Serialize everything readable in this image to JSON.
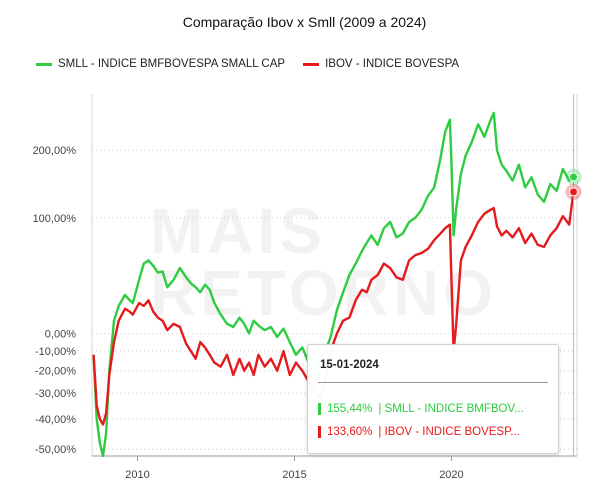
{
  "chart_data": {
    "type": "line",
    "title": "Comparação Ibov x Smll (2009 a 2024)",
    "xlabel": "",
    "ylabel": "",
    "x_ticks": [
      "2010",
      "2015",
      "2020"
    ],
    "y_ticks": [
      "200,00%",
      "100,00%",
      "0,00%",
      "-10,00%",
      "-20,00%",
      "-30,00%",
      "-40,00%",
      "-50,00%"
    ],
    "y_scale": "log(1 + return)",
    "xlim": [
      2008.7,
      2024.15
    ],
    "ylim": [
      -52,
      320
    ],
    "grid": "horizontal dotted",
    "legend_position": "top-left",
    "series": [
      {
        "name": "SMLL - INDICE BMFBOVESPA SMALL CAP",
        "color": "#2ecc40",
        "x": [
          2008.75,
          2008.85,
          2008.95,
          2009.05,
          2009.15,
          2009.25,
          2009.4,
          2009.55,
          2009.75,
          2009.9,
          2010.0,
          2010.2,
          2010.35,
          2010.5,
          2010.65,
          2010.8,
          2010.95,
          2011.1,
          2011.3,
          2011.5,
          2011.7,
          2011.85,
          2012.0,
          2012.15,
          2012.3,
          2012.45,
          2012.6,
          2012.8,
          2013.0,
          2013.2,
          2013.4,
          2013.55,
          2013.7,
          2013.85,
          2014.0,
          2014.2,
          2014.4,
          2014.6,
          2014.8,
          2015.0,
          2015.2,
          2015.4,
          2015.6,
          2015.8,
          2015.95,
          2016.1,
          2016.3,
          2016.5,
          2016.7,
          2016.9,
          2017.1,
          2017.3,
          2017.45,
          2017.6,
          2017.8,
          2018.0,
          2018.2,
          2018.4,
          2018.6,
          2018.8,
          2019.0,
          2019.2,
          2019.4,
          2019.6,
          2019.8,
          2019.95,
          2020.1,
          2020.15,
          2020.22,
          2020.3,
          2020.45,
          2020.6,
          2020.8,
          2021.0,
          2021.2,
          2021.4,
          2021.5,
          2021.6,
          2021.75,
          2021.9,
          2022.1,
          2022.3,
          2022.5,
          2022.7,
          2022.9,
          2023.1,
          2023.3,
          2023.5,
          2023.7,
          2023.9,
          2024.04
        ],
        "y": [
          -12,
          -40,
          -48,
          -52,
          -45,
          -20,
          8,
          18,
          26,
          22,
          20,
          38,
          52,
          55,
          50,
          44,
          45,
          32,
          38,
          48,
          40,
          35,
          32,
          28,
          34,
          30,
          20,
          12,
          6,
          4,
          10,
          6,
          0,
          8,
          5,
          2,
          4,
          -2,
          3,
          -5,
          -12,
          -8,
          -16,
          -22,
          -15,
          -12,
          -2,
          15,
          28,
          42,
          52,
          64,
          72,
          80,
          70,
          88,
          95,
          78,
          82,
          95,
          100,
          110,
          128,
          140,
          185,
          235,
          260,
          180,
          80,
          110,
          160,
          190,
          215,
          250,
          225,
          260,
          275,
          200,
          175,
          165,
          150,
          175,
          140,
          155,
          130,
          120,
          145,
          135,
          168,
          150,
          155.44
        ]
      },
      {
        "name": "IBOV - INDICE BOVESPA",
        "color": "#e41a1c",
        "x": [
          2008.75,
          2008.85,
          2008.95,
          2009.05,
          2009.15,
          2009.25,
          2009.4,
          2009.55,
          2009.75,
          2009.9,
          2010.0,
          2010.2,
          2010.35,
          2010.5,
          2010.65,
          2010.8,
          2010.95,
          2011.1,
          2011.3,
          2011.5,
          2011.7,
          2011.85,
          2012.0,
          2012.15,
          2012.3,
          2012.45,
          2012.6,
          2012.8,
          2013.0,
          2013.2,
          2013.4,
          2013.55,
          2013.7,
          2013.85,
          2014.0,
          2014.2,
          2014.4,
          2014.6,
          2014.8,
          2015.0,
          2015.2,
          2015.4,
          2015.6,
          2015.8,
          2015.95,
          2016.1,
          2016.3,
          2016.5,
          2016.7,
          2016.9,
          2017.1,
          2017.3,
          2017.45,
          2017.6,
          2017.8,
          2018.0,
          2018.2,
          2018.4,
          2018.6,
          2018.8,
          2019.0,
          2019.2,
          2019.4,
          2019.6,
          2019.8,
          2019.95,
          2020.1,
          2020.15,
          2020.22,
          2020.3,
          2020.45,
          2020.6,
          2020.8,
          2021.0,
          2021.2,
          2021.4,
          2021.5,
          2021.6,
          2021.75,
          2021.9,
          2022.1,
          2022.3,
          2022.5,
          2022.7,
          2022.9,
          2023.1,
          2023.3,
          2023.5,
          2023.7,
          2023.9,
          2024.04
        ],
        "y": [
          -12,
          -35,
          -40,
          -42,
          -38,
          -22,
          -5,
          8,
          16,
          14,
          12,
          20,
          18,
          22,
          14,
          10,
          8,
          2,
          6,
          4,
          -6,
          -10,
          -14,
          -5,
          -8,
          -12,
          -16,
          -18,
          -12,
          -22,
          -14,
          -20,
          -16,
          -22,
          -12,
          -18,
          -14,
          -20,
          -10,
          -22,
          -16,
          -20,
          -25,
          -30,
          -32,
          -26,
          -10,
          0,
          8,
          10,
          22,
          30,
          28,
          38,
          42,
          52,
          48,
          40,
          38,
          55,
          60,
          62,
          66,
          75,
          82,
          88,
          92,
          40,
          -10,
          5,
          55,
          68,
          80,
          95,
          105,
          110,
          112,
          90,
          80,
          85,
          78,
          88,
          72,
          82,
          70,
          68,
          80,
          88,
          102,
          92,
          133.6
        ]
      }
    ]
  },
  "tooltip": {
    "date": "15-01-2024",
    "rows": [
      {
        "value": "155,44%",
        "label": "| SMLL - INDICE BMFBOV..."
      },
      {
        "value": "133,60%",
        "label": "| IBOV - INDICE BOVESP..."
      }
    ]
  },
  "watermark": "MAIS RETORNO",
  "colors": {
    "smll": "#2ecc40",
    "ibov": "#e41a1c"
  }
}
